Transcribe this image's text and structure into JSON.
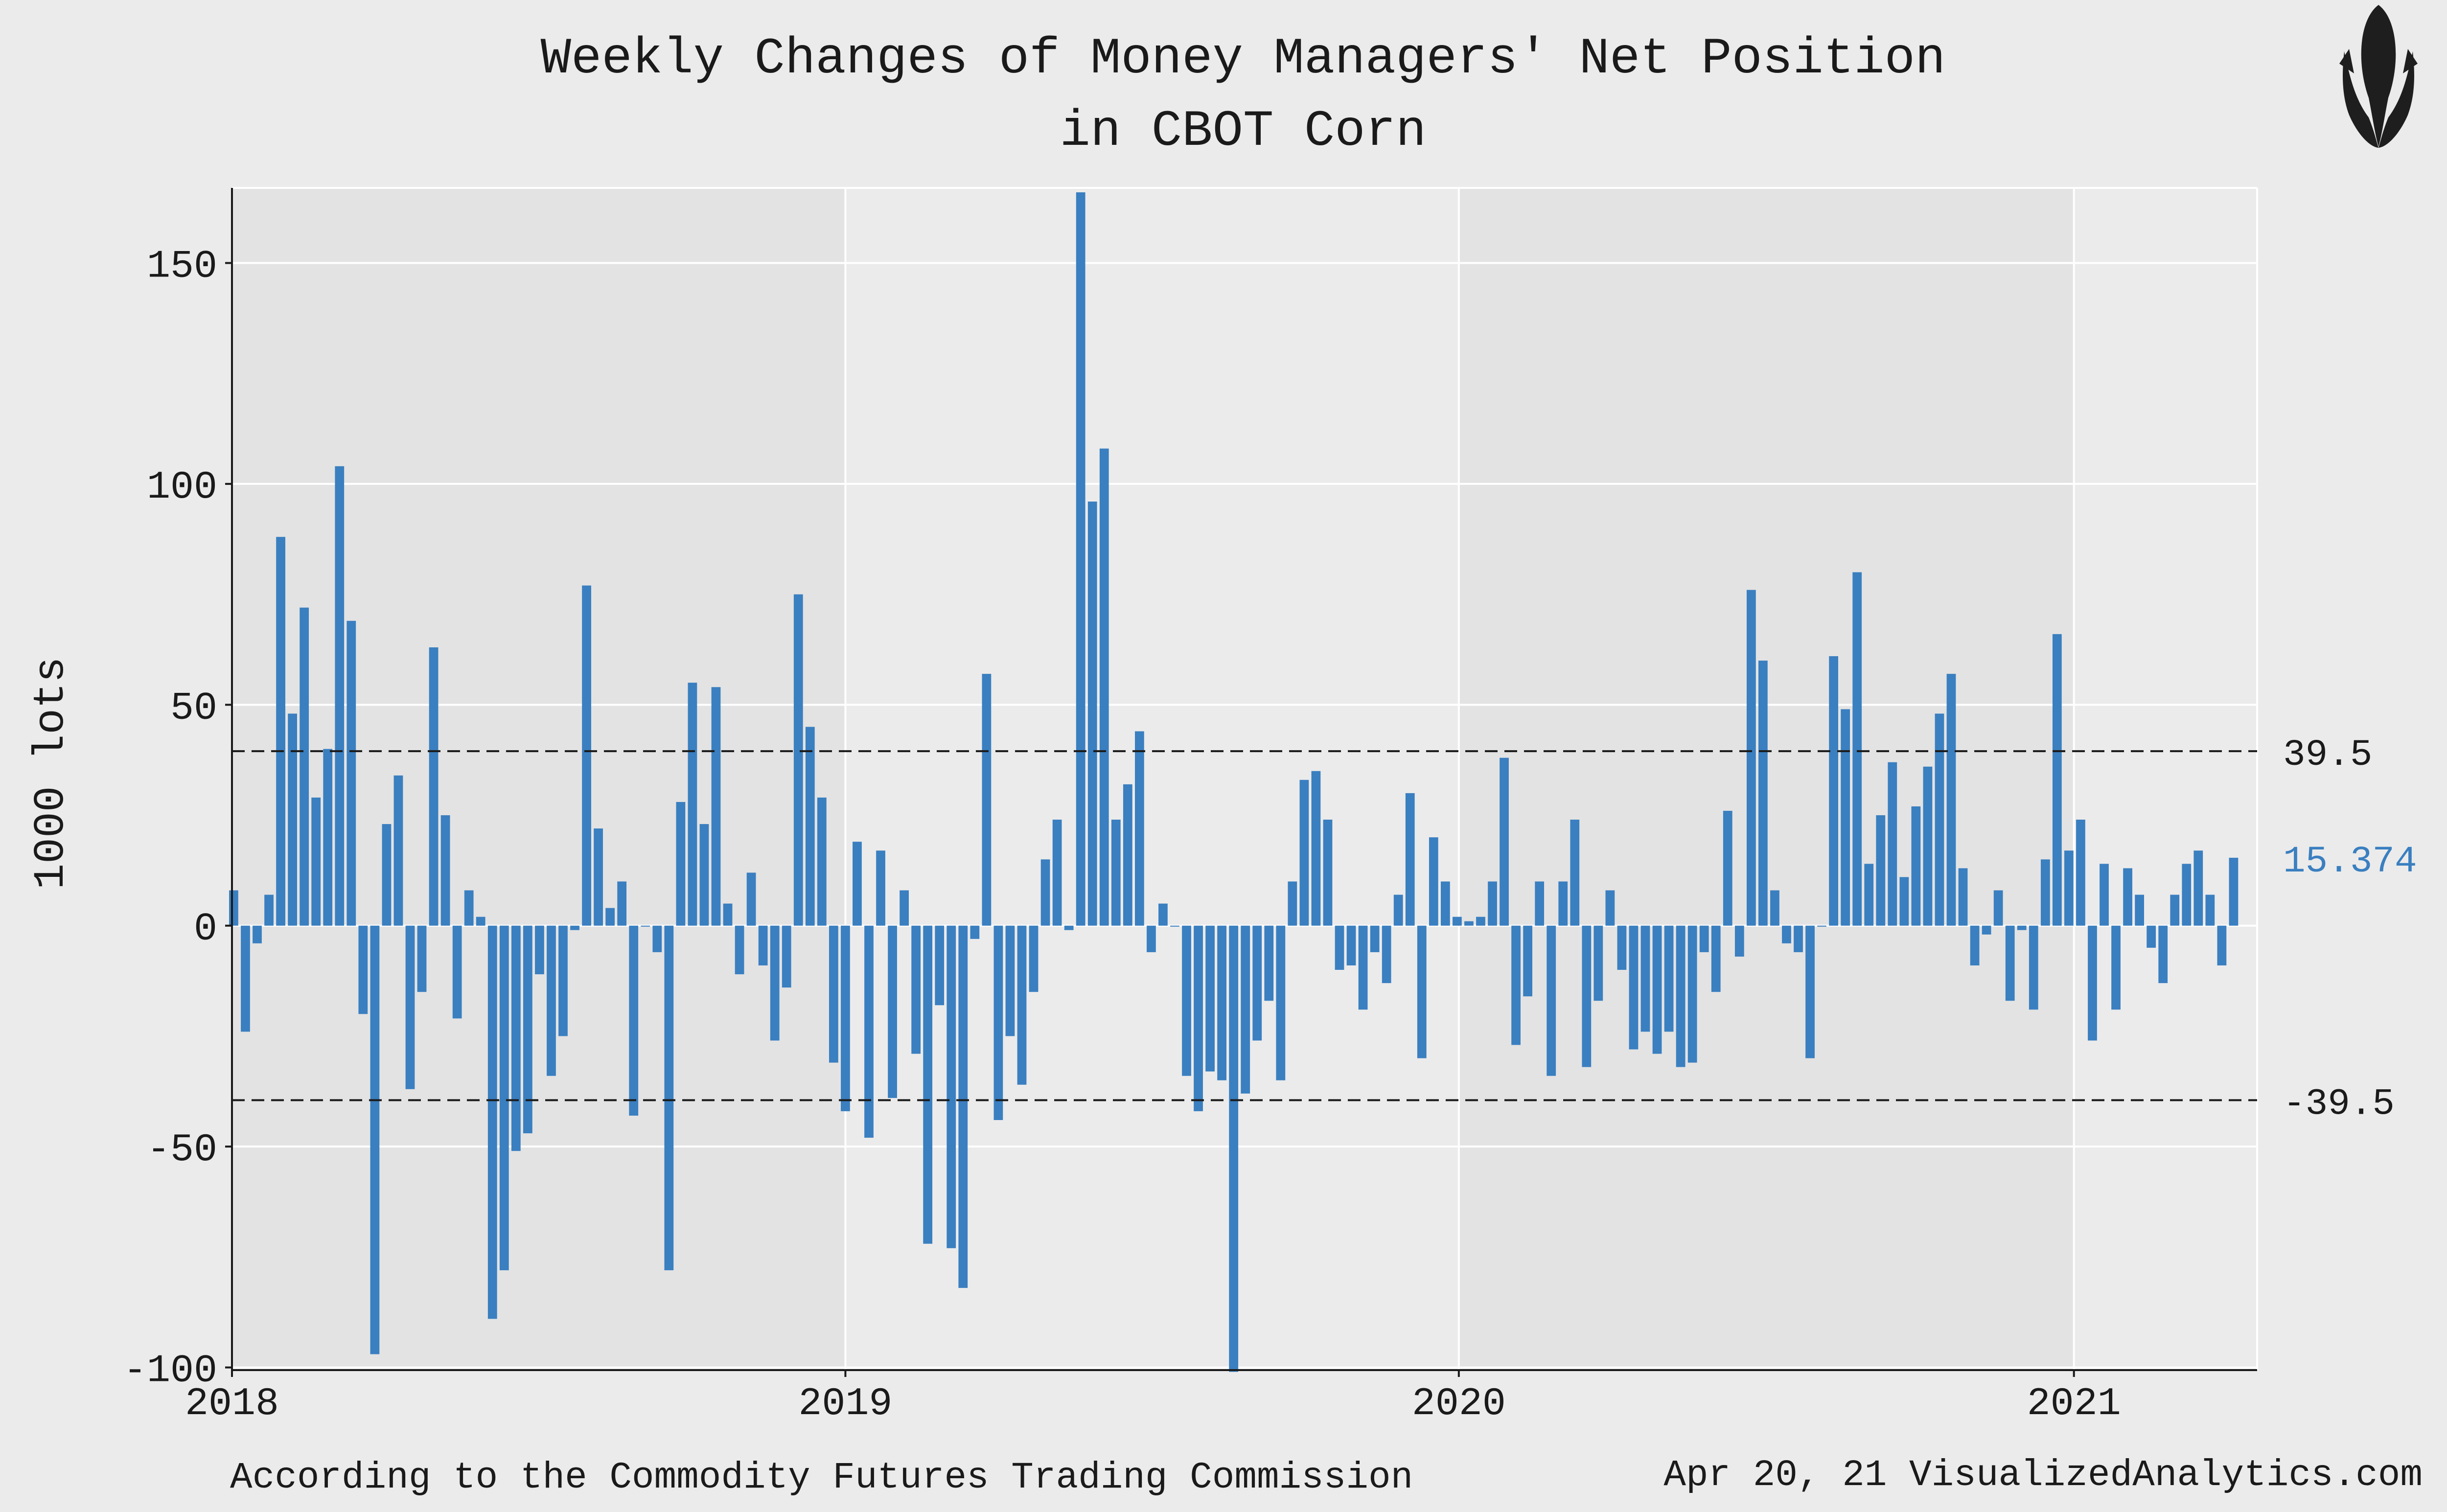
{
  "title_line1": "Weekly Changes of Money Managers' Net Position",
  "title_line2": "in CBOT Corn",
  "footer_left": "According to the Commodity Futures Trading Commission",
  "footer_right": "Apr 20, 21  VisualizedAnalytics.com",
  "logo_icon": "corn-icon",
  "colors": {
    "bar": "#3a7fc0",
    "last_value": "#3a7fc0",
    "background": "#ebebeb",
    "shade": "#e3e3e3",
    "grid": "#ffffff",
    "text": "#1a1a1a"
  },
  "chart_data": {
    "type": "bar",
    "title": "Weekly Changes of Money Managers' Net Position in CBOT Corn",
    "ylabel": "1000 lots",
    "xlabel": "",
    "ylim": [
      -100.6,
      167
    ],
    "xlim": [
      "2018-01-01",
      "2021-04-20"
    ],
    "x_ticks": [
      "2018",
      "2019",
      "2020",
      "2021"
    ],
    "y_ticks": [
      -100,
      -50,
      0,
      50,
      100,
      150
    ],
    "grid": true,
    "shaded_years": [
      "2018",
      "2020"
    ],
    "reference_lines": [
      {
        "value": 39.5,
        "label": "39.5",
        "style": "dashed"
      },
      {
        "value": -39.5,
        "label": "-39.5",
        "style": "dashed"
      }
    ],
    "last_value": {
      "value": 15.374,
      "label": "15.374"
    },
    "x_start": "2018-01-02",
    "x_interval_days": 7,
    "values": [
      8,
      -24,
      -4,
      7,
      88,
      48,
      72,
      29,
      40,
      104,
      69,
      -20,
      -97,
      23,
      34,
      -37,
      -15,
      63,
      25,
      -21,
      8,
      2,
      -89,
      -78,
      -51,
      -47,
      -11,
      -34,
      -25,
      -1,
      77,
      22,
      4,
      10,
      -43,
      0,
      -6,
      -78,
      28,
      55,
      23,
      54,
      5,
      -11,
      12,
      -9,
      -26,
      -14,
      75,
      45,
      29,
      -31,
      -42,
      19,
      -48,
      17,
      -39,
      8,
      -29,
      -72,
      -18,
      -73,
      -82,
      -3,
      57,
      -44,
      -25,
      -36,
      -15,
      15,
      24,
      -1,
      166,
      96,
      108,
      24,
      32,
      44,
      -6,
      5,
      0,
      -34,
      -42,
      -33,
      -35,
      -101,
      -38,
      -26,
      -17,
      -35,
      10,
      33,
      35,
      24,
      -10,
      -9,
      -19,
      -6,
      -13,
      7,
      30,
      -30,
      20,
      10,
      2,
      1,
      2,
      10,
      38,
      -27,
      -16,
      10,
      -34,
      10,
      24,
      -32,
      -17,
      8,
      -10,
      -28,
      -24,
      -29,
      -24,
      -32,
      -31,
      -6,
      -15,
      26,
      -7,
      76,
      60,
      8,
      -4,
      -6,
      -30,
      0,
      61,
      49,
      80,
      14,
      25,
      37,
      11,
      27,
      36,
      48,
      57,
      13,
      -9,
      -2,
      8,
      -17,
      -1,
      -19,
      15,
      66,
      17,
      24,
      -26,
      14,
      -19,
      13,
      7,
      -5,
      -13,
      7,
      14,
      17,
      7,
      -9,
      15.374
    ]
  }
}
